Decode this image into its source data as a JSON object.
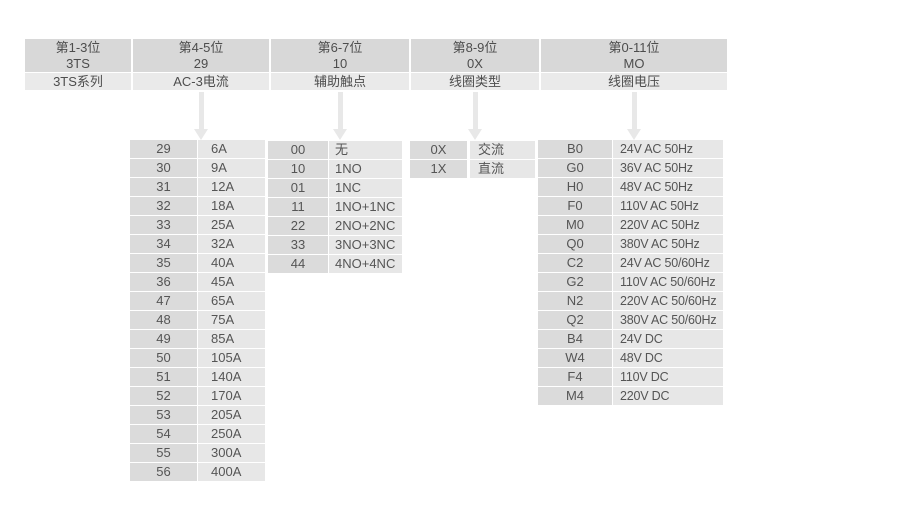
{
  "colors": {
    "header_primary_bg": "#d8d8d8",
    "header_secondary_bg": "#eaeaea",
    "code_cell_bg": "#dbdbdb",
    "value_cell_bg": "#e7e7e7",
    "arrow": "#e8e8e8",
    "text": "#555555"
  },
  "header": {
    "columns": [
      {
        "position": "第1-3位",
        "code": "3TS",
        "label": "3TS系列"
      },
      {
        "position": "第4-5位",
        "code": "29",
        "label": "AC-3电流"
      },
      {
        "position": "第6-7位",
        "code": "10",
        "label": "辅助触点"
      },
      {
        "position": "第8-9位",
        "code": "0X",
        "label": "线圈类型"
      },
      {
        "position": "第0-11位",
        "code": "MO",
        "label": "线圈电压"
      }
    ]
  },
  "tables": {
    "ac3_current": {
      "rows": [
        [
          "29",
          "6A"
        ],
        [
          "30",
          "9A"
        ],
        [
          "31",
          "12A"
        ],
        [
          "32",
          "18A"
        ],
        [
          "33",
          "25A"
        ],
        [
          "34",
          "32A"
        ],
        [
          "35",
          "40A"
        ],
        [
          "36",
          "45A"
        ],
        [
          "47",
          "65A"
        ],
        [
          "48",
          "75A"
        ],
        [
          "49",
          "85A"
        ],
        [
          "50",
          "105A"
        ],
        [
          "51",
          "140A"
        ],
        [
          "52",
          "170A"
        ],
        [
          "53",
          "205A"
        ],
        [
          "54",
          "250A"
        ],
        [
          "55",
          "300A"
        ],
        [
          "56",
          "400A"
        ]
      ]
    },
    "aux_contacts": {
      "rows": [
        [
          "00",
          "无"
        ],
        [
          "10",
          "1NO"
        ],
        [
          "01",
          "1NC"
        ],
        [
          "11",
          "1NO+1NC"
        ],
        [
          "22",
          "2NO+2NC"
        ],
        [
          "33",
          "3NO+3NC"
        ],
        [
          "44",
          "4NO+4NC"
        ]
      ]
    },
    "coil_type": {
      "rows": [
        [
          "0X",
          "交流"
        ],
        [
          "1X",
          "直流"
        ]
      ]
    },
    "coil_voltage": {
      "rows": [
        [
          "B0",
          "24V AC 50Hz"
        ],
        [
          "G0",
          "36V AC 50Hz"
        ],
        [
          "H0",
          "48V AC 50Hz"
        ],
        [
          "F0",
          "110V AC 50Hz"
        ],
        [
          "M0",
          "220V AC 50Hz"
        ],
        [
          "Q0",
          "380V AC 50Hz"
        ],
        [
          "C2",
          "24V AC 50/60Hz"
        ],
        [
          "G2",
          "110V AC 50/60Hz"
        ],
        [
          "N2",
          "220V AC 50/60Hz"
        ],
        [
          "Q2",
          "380V AC 50/60Hz"
        ],
        [
          "B4",
          "24V DC"
        ],
        [
          "W4",
          "48V DC"
        ],
        [
          "F4",
          "110V DC"
        ],
        [
          "M4",
          "220V DC"
        ]
      ]
    }
  }
}
